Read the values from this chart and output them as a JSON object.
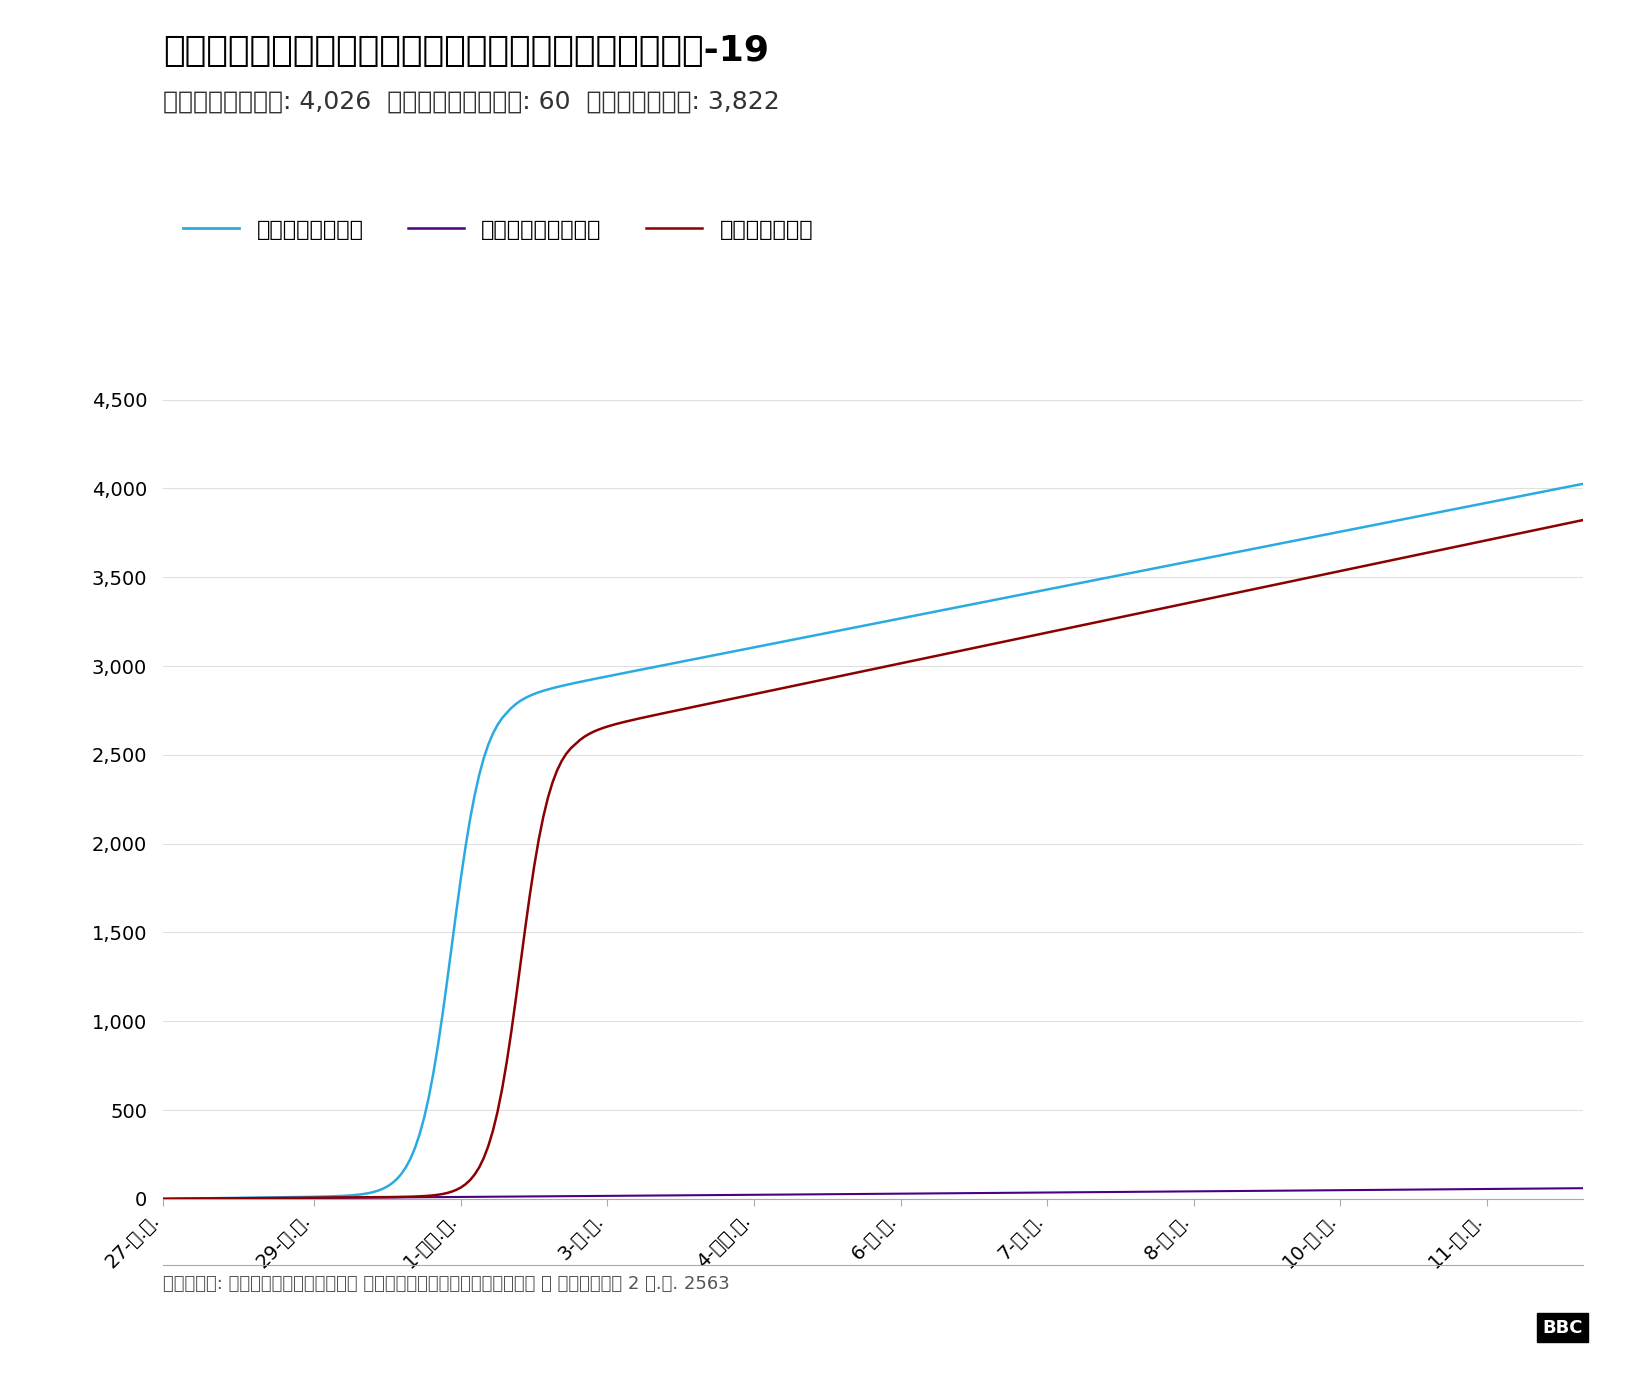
{
  "title": "สถานการณ์การระบาดโรคโควิด-19",
  "subtitle": "ติดเชื้อ: 4,026  เสียชีวิต: 60  หายแล้ว: 3,822",
  "footer": "ที่มา: กรมควบคุมโรค กระทรวงสาธารณสุข ณ วันที่ 2 ธ.ค. 2563",
  "legend_infected": "ติดเชื้อ",
  "legend_death": "เสียชีวิต",
  "legend_recovered": "หายแล้ว",
  "color_infected": "#29ABE2",
  "color_death": "#4B0082",
  "color_recovered": "#8B0000",
  "ylim": [
    0,
    4500
  ],
  "yticks": [
    0,
    500,
    1000,
    1500,
    2000,
    2500,
    3000,
    3500,
    4000,
    4500
  ],
  "x_labels": [
    "27-ม.ค.",
    "29-ก.พ.",
    "1-เม.ย.",
    "3-พ.ค.",
    "4-มิ.ย.",
    "6-ก.ค.",
    "7-ส.ค.",
    "8-ก.ย.",
    "10-ต.ค.",
    "11-พ.ย."
  ],
  "background_color": "#FFFFFF",
  "grid_color": "#E0E0E0",
  "title_fontsize": 26,
  "subtitle_fontsize": 18,
  "axis_fontsize": 14,
  "legend_fontsize": 16,
  "footer_fontsize": 13
}
